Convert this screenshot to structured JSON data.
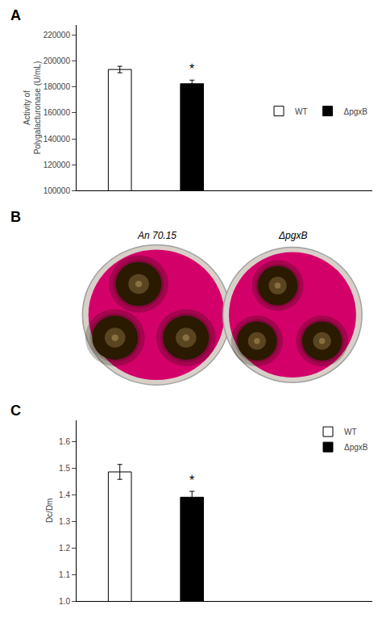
{
  "chart_data": [
    {
      "type": "bar",
      "categories": [
        null,
        null
      ],
      "series": [
        {
          "name": "WT",
          "color": "white",
          "values": [
            193500,
            null
          ],
          "errors": [
            2500,
            null
          ]
        },
        {
          "name": "ΔpgxB",
          "color": "black",
          "values": [
            null,
            182500
          ],
          "errors": [
            null,
            2800
          ]
        }
      ],
      "ylabel": "Activity of\nPolygalacturonase (U/mL)",
      "ylim": [
        100000,
        228000
      ],
      "yticks": [
        100000,
        120000,
        140000,
        160000,
        180000,
        200000,
        220000
      ],
      "grid": false,
      "legend": "right",
      "tick_labels": "y",
      "annotations": [
        "A",
        {
          "text": "*",
          "x": 1
        }
      ]
    },
    {
      "type": "illustration",
      "annotations": [
        "B",
        "An 70.15",
        "ΔpgxB"
      ]
    },
    {
      "type": "bar",
      "categories": [
        null,
        null
      ],
      "series": [
        {
          "name": "WT",
          "color": "white",
          "values": [
            1.485,
            null
          ],
          "errors": [
            0.028,
            null
          ]
        },
        {
          "name": "ΔpgxB",
          "color": "black",
          "values": [
            null,
            1.39
          ],
          "errors": [
            null,
            0.022
          ]
        }
      ],
      "ylabel": "Dc/Dm",
      "ylim": [
        1.0,
        1.68
      ],
      "yticks": [
        {
          "value": 1.0,
          "label": "1.0"
        },
        1.1,
        1.2,
        1.3,
        1.4,
        1.5,
        1.6
      ],
      "grid": false,
      "legend": "upper right",
      "tick_labels": "y",
      "annotations": [
        "C",
        {
          "text": "*",
          "x": 1
        }
      ]
    }
  ]
}
